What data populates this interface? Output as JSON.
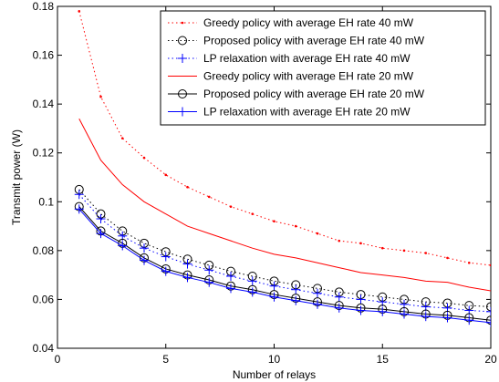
{
  "chart_data": {
    "type": "line",
    "xlabel": "Number of relays",
    "ylabel": "Transmit power (W)",
    "xlim": [
      0,
      20
    ],
    "ylim": [
      0.04,
      0.18
    ],
    "xticks": [
      0,
      5,
      10,
      15,
      20
    ],
    "xtick_labels": [
      "0",
      "5",
      "10",
      "15",
      "20"
    ],
    "yticks": [
      0.04,
      0.06,
      0.08,
      0.1,
      0.12,
      0.14,
      0.16,
      0.18
    ],
    "ytick_labels": [
      "0.04",
      "0.06",
      "0.08",
      "0.1",
      "0.12",
      "0.14",
      "0.16",
      "0.18"
    ],
    "grid": false,
    "legend_position": "top-right",
    "x": [
      1,
      2,
      3,
      4,
      5,
      6,
      7,
      8,
      9,
      10,
      11,
      12,
      13,
      14,
      15,
      16,
      17,
      18,
      19,
      20
    ],
    "series": [
      {
        "name": "Greedy policy with average EH rate 40 mW",
        "color": "#ff0000",
        "line_style": "dotted",
        "marker": "dot",
        "values": [
          0.178,
          0.143,
          0.126,
          0.118,
          0.111,
          0.106,
          0.102,
          0.098,
          0.095,
          0.092,
          0.09,
          0.087,
          0.084,
          0.083,
          0.081,
          0.08,
          0.079,
          0.077,
          0.075,
          0.074
        ]
      },
      {
        "name": "Proposed policy with average EH rate 40 mW",
        "color": "#000000",
        "line_style": "dotted",
        "marker": "circle",
        "values": [
          0.105,
          0.095,
          0.088,
          0.083,
          0.0795,
          0.0765,
          0.074,
          0.0715,
          0.0695,
          0.0675,
          0.066,
          0.0645,
          0.063,
          0.062,
          0.061,
          0.06,
          0.059,
          0.0585,
          0.0575,
          0.057
        ]
      },
      {
        "name": "LP relaxation with average EH rate 40 mW",
        "color": "#0000ff",
        "line_style": "dotted",
        "marker": "plus",
        "values": [
          0.103,
          0.093,
          0.086,
          0.081,
          0.0775,
          0.0745,
          0.072,
          0.0695,
          0.0675,
          0.0655,
          0.064,
          0.0625,
          0.061,
          0.06,
          0.059,
          0.058,
          0.057,
          0.0565,
          0.0555,
          0.055
        ]
      },
      {
        "name": "Greedy policy with average EH rate 20 mW",
        "color": "#ff0000",
        "line_style": "solid",
        "marker": "none",
        "values": [
          0.134,
          0.117,
          0.107,
          0.1,
          0.095,
          0.09,
          0.087,
          0.084,
          0.081,
          0.0785,
          0.077,
          0.075,
          0.073,
          0.071,
          0.07,
          0.069,
          0.0675,
          0.067,
          0.065,
          0.0635
        ]
      },
      {
        "name": "Proposed policy with average EH rate 20 mW",
        "color": "#000000",
        "line_style": "solid",
        "marker": "circle",
        "values": [
          0.098,
          0.088,
          0.083,
          0.077,
          0.0725,
          0.07,
          0.068,
          0.0655,
          0.064,
          0.062,
          0.0605,
          0.059,
          0.0575,
          0.0565,
          0.056,
          0.055,
          0.054,
          0.0535,
          0.0525,
          0.0515
        ]
      },
      {
        "name": "LP relaxation with average EH rate 20 mW",
        "color": "#0000ff",
        "line_style": "solid",
        "marker": "plus",
        "values": [
          0.097,
          0.087,
          0.082,
          0.076,
          0.0715,
          0.069,
          0.067,
          0.0645,
          0.063,
          0.061,
          0.0595,
          0.058,
          0.0565,
          0.0555,
          0.055,
          0.054,
          0.053,
          0.0525,
          0.0515,
          0.0505
        ]
      }
    ]
  }
}
